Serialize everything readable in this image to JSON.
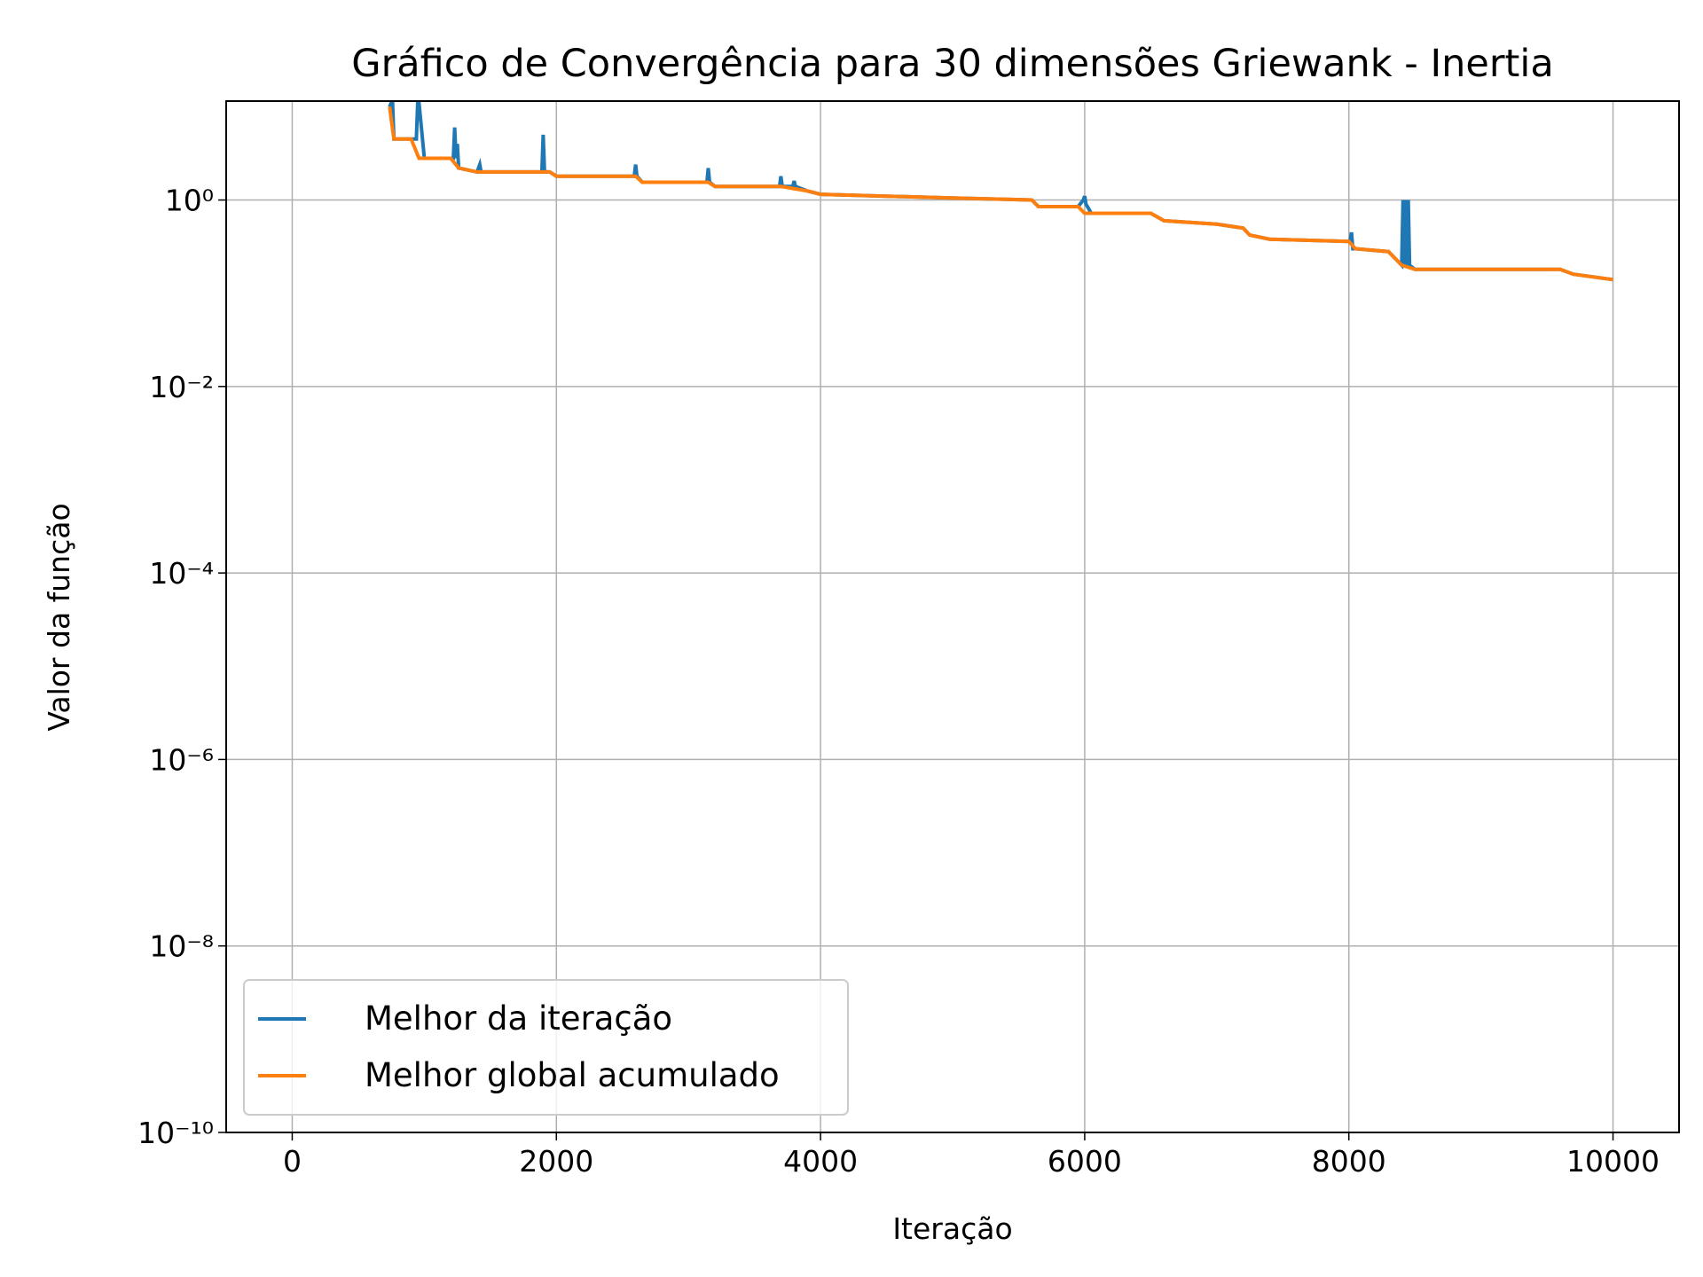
{
  "chart_data": {
    "type": "line",
    "title": "Gráfico de Convergência para 30 dimensões Griewank - Inertia",
    "xlabel": "Iteração",
    "ylabel": "Valor da função",
    "xlim": [
      -500,
      10500
    ],
    "xticks": [
      0,
      2000,
      4000,
      6000,
      8000,
      10000
    ],
    "ylim": [
      1e-10,
      11.5
    ],
    "log_y": true,
    "yticks": [
      {
        "value": 1e-10,
        "label": "10⁻¹⁰"
      },
      {
        "value": 1e-08,
        "label": "10⁻⁸"
      },
      {
        "value": 1e-06,
        "label": "10⁻⁶"
      },
      {
        "value": 0.0001,
        "label": "10⁻⁴"
      },
      {
        "value": 0.01,
        "label": "10⁻²"
      },
      {
        "value": 1,
        "label": "10⁰"
      }
    ],
    "grid": true,
    "legend": "lower left",
    "series": [
      {
        "name": "Melhor da iteração",
        "color": "#1f77b4",
        "x": [
          737,
          750,
          760,
          770,
          800,
          900,
          940,
          950,
          960,
          1000,
          1200,
          1220,
          1230,
          1240,
          1250,
          1260,
          1400,
          1420,
          1430,
          1890,
          1900,
          1910,
          1950,
          2000,
          2590,
          2600,
          2610,
          2650,
          3140,
          3150,
          3160,
          3200,
          3690,
          3700,
          3710,
          3790,
          3800,
          3810,
          3900,
          4000,
          4500,
          5000,
          5600,
          5650,
          5950,
          5990,
          6000,
          6010,
          6050,
          6500,
          6600,
          7000,
          7200,
          7250,
          7400,
          8000,
          8010,
          8020,
          8030,
          8050,
          8300,
          8400,
          8410,
          8420,
          8430,
          8440,
          8450,
          8460,
          8500,
          9600,
          9700,
          10000
        ],
        "values": [
          10,
          11,
          11,
          4.5,
          4.5,
          4.5,
          4.5,
          11,
          11,
          2.8,
          2.8,
          2.8,
          6,
          2.8,
          4,
          2.2,
          2.0,
          2.4,
          2.0,
          2.0,
          5,
          2.0,
          2.0,
          1.8,
          1.8,
          2.4,
          1.8,
          1.55,
          1.55,
          2.2,
          1.55,
          1.4,
          1.4,
          1.8,
          1.4,
          1.4,
          1.6,
          1.4,
          1.25,
          1.15,
          1.1,
          1.05,
          1.0,
          0.85,
          0.85,
          1.0,
          1.1,
          0.9,
          0.72,
          0.72,
          0.6,
          0.55,
          0.5,
          0.42,
          0.38,
          0.36,
          0.36,
          0.45,
          0.3,
          0.3,
          0.28,
          0.2,
          1.0,
          0.2,
          1.0,
          0.2,
          1.0,
          0.2,
          0.18,
          0.18,
          0.16,
          0.14
        ]
      },
      {
        "name": "Melhor global acumulado",
        "color": "#ff7f0e",
        "x": [
          737,
          770,
          900,
          960,
          1200,
          1260,
          1400,
          1950,
          2000,
          2600,
          2650,
          3150,
          3200,
          3700,
          3900,
          4000,
          4500,
          5000,
          5600,
          5650,
          5950,
          6000,
          6500,
          6600,
          7000,
          7200,
          7250,
          7400,
          8000,
          8050,
          8300,
          8400,
          8500,
          9600,
          9700,
          10000
        ],
        "values": [
          10,
          4.5,
          4.5,
          2.8,
          2.8,
          2.2,
          2.0,
          2.0,
          1.8,
          1.8,
          1.55,
          1.55,
          1.4,
          1.4,
          1.25,
          1.15,
          1.1,
          1.05,
          1.0,
          0.85,
          0.85,
          0.72,
          0.72,
          0.6,
          0.55,
          0.5,
          0.42,
          0.38,
          0.36,
          0.3,
          0.28,
          0.2,
          0.18,
          0.18,
          0.16,
          0.14
        ]
      }
    ]
  }
}
